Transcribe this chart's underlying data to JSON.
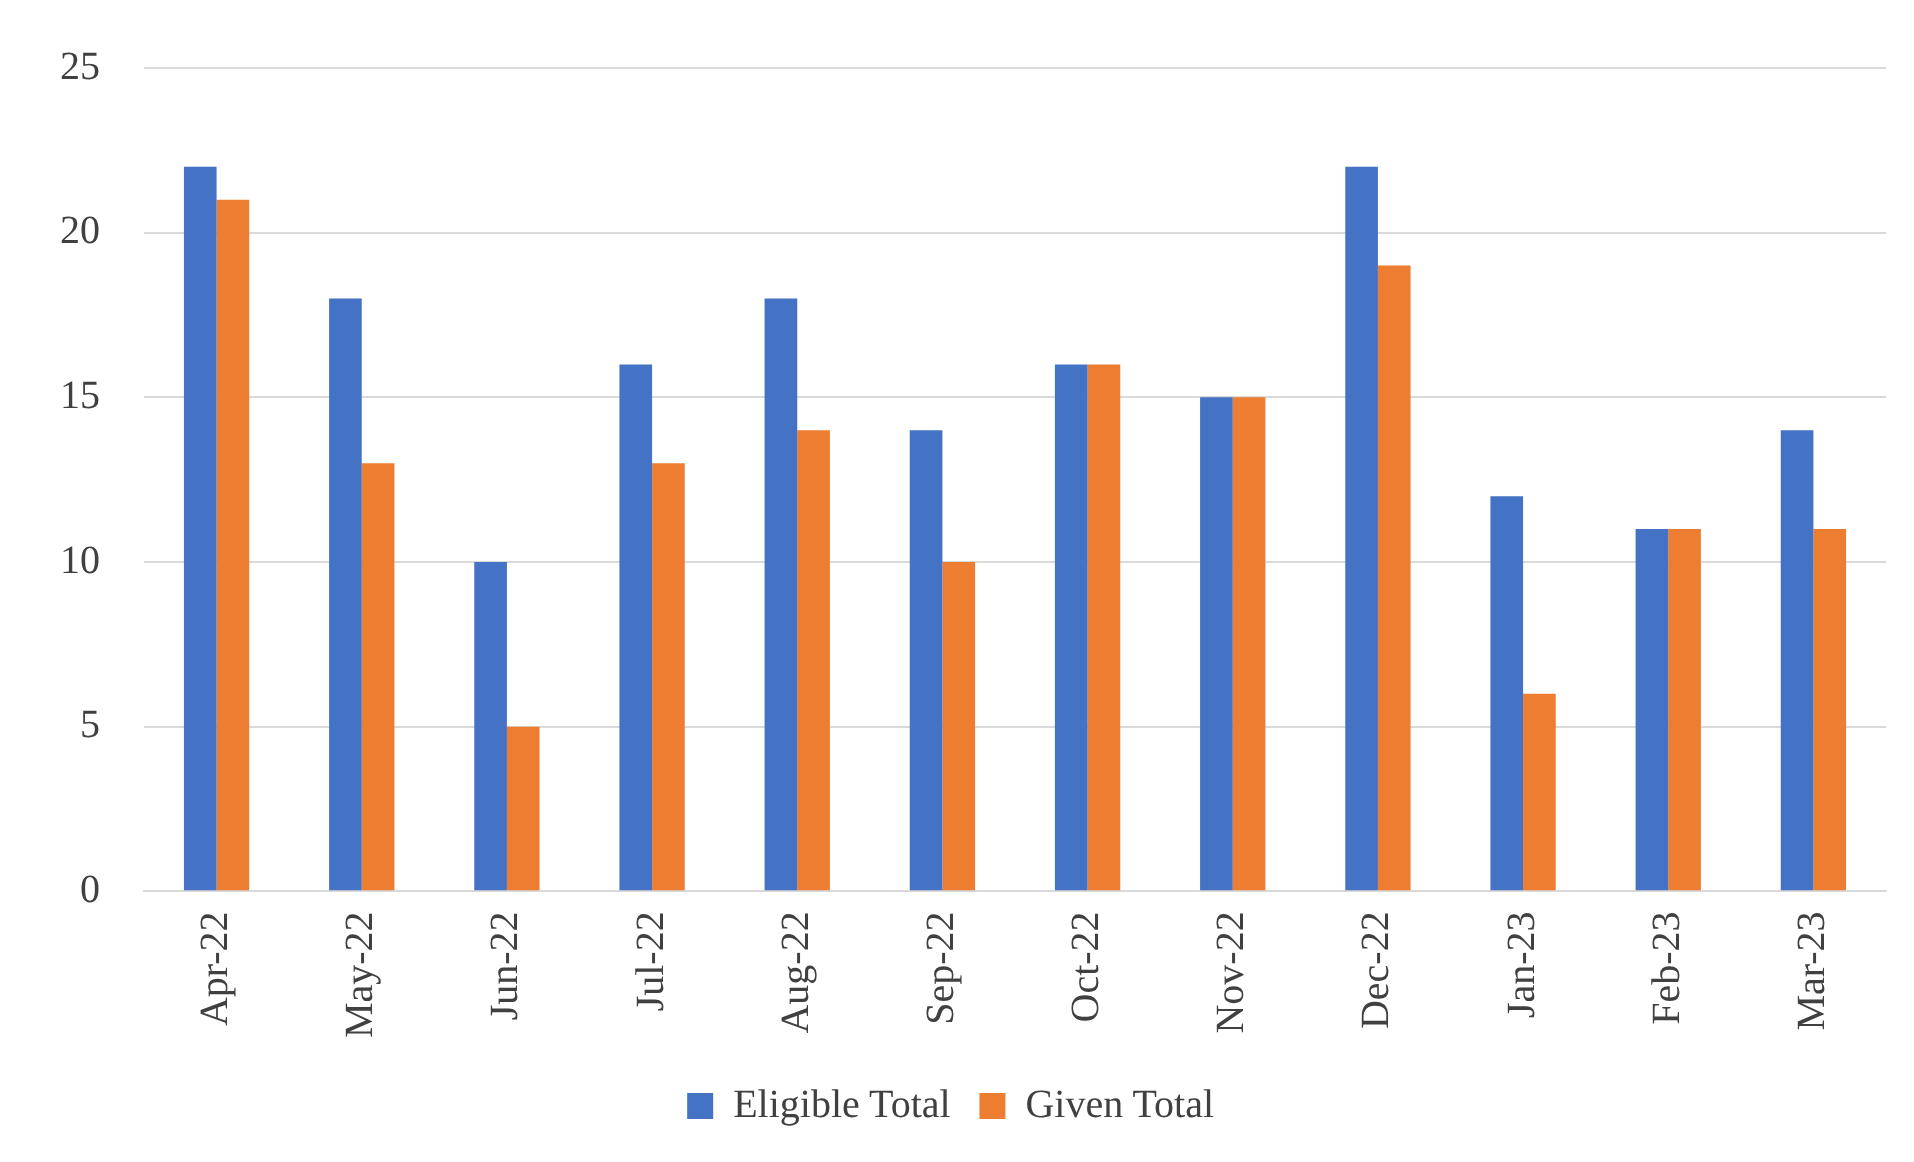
{
  "chart_data": {
    "type": "bar",
    "categories": [
      "Apr-22",
      "May-22",
      "Jun-22",
      "Jul-22",
      "Aug-22",
      "Sep-22",
      "Oct-22",
      "Nov-22",
      "Dec-22",
      "Jan-23",
      "Feb-23",
      "Mar-23"
    ],
    "series": [
      {
        "name": "Eligible Total",
        "color": "#4472c4",
        "values": [
          22,
          18,
          10,
          16,
          18,
          14,
          16,
          15,
          22,
          12,
          11,
          14
        ]
      },
      {
        "name": "Given Total",
        "color": "#ed7d31",
        "values": [
          21,
          13,
          5,
          13,
          14,
          10,
          16,
          15,
          19,
          6,
          11,
          11
        ]
      }
    ],
    "ylim": [
      0,
      25
    ],
    "yticks": [
      0,
      5,
      10,
      15,
      20,
      25
    ],
    "grid": "y",
    "legend": "bottom"
  }
}
